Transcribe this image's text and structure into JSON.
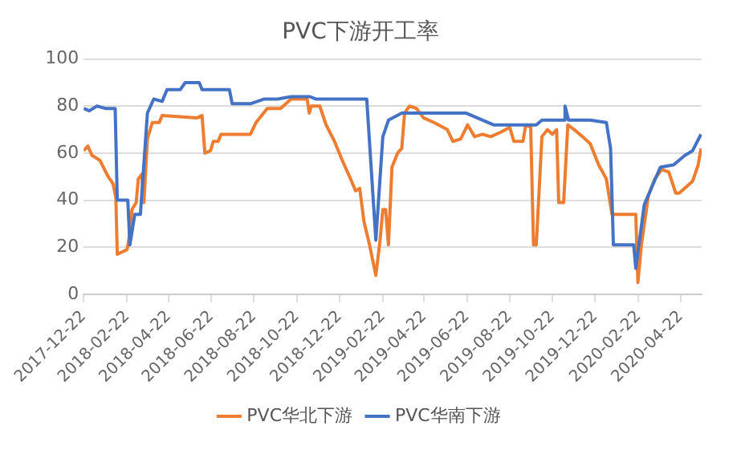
{
  "chart_data": {
    "type": "line",
    "title": "PVC下游开工率",
    "xlim": [
      "2017-12-22",
      "2020-05-22"
    ],
    "xticks": [
      "2017-12-22",
      "2018-02-22",
      "2018-04-22",
      "2018-06-22",
      "2018-08-22",
      "2018-10-22",
      "2018-12-22",
      "2019-02-22",
      "2019-04-22",
      "2019-06-22",
      "2019-08-22",
      "2019-10-22",
      "2019-12-22",
      "2020-02-22",
      "2020-04-22"
    ],
    "ylim": [
      0,
      100
    ],
    "yticks": [
      0,
      20,
      40,
      60,
      80,
      100
    ],
    "grid": "y",
    "legend": "bottom",
    "marker": "none",
    "line_style": "solid",
    "series": [
      {
        "name": "PVC华北下游",
        "color": "#ed7d31",
        "x": [
          "2017-12-22",
          "2017-12-28",
          "2018-01-03",
          "2018-01-14",
          "2018-01-26",
          "2018-02-02",
          "2018-02-06",
          "2018-02-08",
          "2018-02-22",
          "2018-02-25",
          "2018-03-01",
          "2018-03-07",
          "2018-03-10",
          "2018-03-15",
          "2018-03-18",
          "2018-03-23",
          "2018-03-30",
          "2018-04-09",
          "2018-04-13",
          "2018-06-02",
          "2018-06-09",
          "2018-06-13",
          "2018-06-21",
          "2018-06-25",
          "2018-07-02",
          "2018-07-06",
          "2018-08-17",
          "2018-08-25",
          "2018-09-10",
          "2018-09-29",
          "2018-10-14",
          "2018-11-06",
          "2018-11-09",
          "2018-11-12",
          "2018-11-24",
          "2018-12-03",
          "2018-12-15",
          "2018-12-26",
          "2019-01-07",
          "2019-01-14",
          "2019-01-20",
          "2019-01-26",
          "2019-02-03",
          "2019-02-12",
          "2019-02-18",
          "2019-02-22",
          "2019-02-26",
          "2019-03-02",
          "2019-03-07",
          "2019-03-15",
          "2019-03-21",
          "2019-03-25",
          "2019-04-01",
          "2019-04-11",
          "2019-04-21",
          "2019-05-06",
          "2019-05-25",
          "2019-06-02",
          "2019-06-13",
          "2019-06-23",
          "2019-07-03",
          "2019-07-14",
          "2019-07-26",
          "2019-08-10",
          "2019-08-22",
          "2019-08-28",
          "2019-09-10",
          "2019-09-14",
          "2019-09-21",
          "2019-09-25",
          "2019-09-29",
          "2019-10-07",
          "2019-10-15",
          "2019-10-22",
          "2019-10-28",
          "2019-10-31",
          "2019-11-07",
          "2019-11-13",
          "2019-11-22",
          "2019-12-04",
          "2019-12-15",
          "2019-12-27",
          "2020-01-07",
          "2020-01-15",
          "2020-02-18",
          "2020-02-21",
          "2020-02-26",
          "2020-03-07",
          "2020-03-16",
          "2020-03-26",
          "2020-04-05",
          "2020-04-15",
          "2020-04-20",
          "2020-05-09",
          "2020-05-17",
          "2020-05-21"
        ],
        "values": [
          61,
          63,
          59,
          57,
          50,
          47,
          41,
          17,
          19,
          24,
          36,
          39,
          49,
          51,
          39,
          66,
          73,
          73,
          76,
          75,
          76,
          60,
          61,
          65,
          65,
          68,
          68,
          73,
          79,
          79,
          83,
          83,
          77,
          80,
          80,
          72,
          65,
          57,
          49,
          44,
          45,
          31,
          21,
          8,
          23,
          36,
          36,
          21,
          54,
          60,
          62,
          77,
          80,
          79,
          75,
          73,
          70,
          65,
          66,
          72,
          67,
          68,
          67,
          69,
          71,
          65,
          65,
          72,
          71,
          21,
          21,
          67,
          70,
          68,
          70,
          39,
          39,
          72,
          70,
          67,
          64,
          55,
          49,
          34,
          34,
          5,
          21,
          42,
          49,
          53,
          52,
          43,
          43,
          48,
          55,
          62
        ]
      },
      {
        "name": "PVC华南下游",
        "color": "#4472c4",
        "x": [
          "2017-12-22",
          "2017-12-30",
          "2018-01-10",
          "2018-01-22",
          "2018-02-05",
          "2018-02-08",
          "2018-02-23",
          "2018-02-26",
          "2018-03-05",
          "2018-03-13",
          "2018-03-23",
          "2018-04-01",
          "2018-04-13",
          "2018-04-20",
          "2018-05-09",
          "2018-05-16",
          "2018-06-05",
          "2018-06-09",
          "2018-07-18",
          "2018-07-22",
          "2018-08-17",
          "2018-09-06",
          "2018-09-25",
          "2018-10-14",
          "2018-11-10",
          "2018-11-18",
          "2019-01-30",
          "2019-02-12",
          "2019-02-22",
          "2019-03-02",
          "2019-03-21",
          "2019-06-21",
          "2019-07-30",
          "2019-09-29",
          "2019-10-07",
          "2019-11-07",
          "2019-11-09",
          "2019-11-14",
          "2019-12-15",
          "2020-01-07",
          "2020-01-13",
          "2020-01-17",
          "2020-02-15",
          "2020-02-18",
          "2020-03-01",
          "2020-03-24",
          "2020-04-12",
          "2020-04-28",
          "2020-05-09",
          "2020-05-21"
        ],
        "values": [
          79,
          78,
          80,
          79,
          79,
          40,
          40,
          21,
          34,
          34,
          77,
          83,
          82,
          87,
          87,
          90,
          90,
          87,
          87,
          81,
          81,
          83,
          83,
          84,
          84,
          83,
          83,
          23,
          67,
          74,
          77,
          77,
          72,
          72,
          74,
          74,
          80,
          74,
          74,
          73,
          62,
          21,
          21,
          11,
          38,
          54,
          55,
          59,
          61,
          68
        ]
      }
    ]
  }
}
